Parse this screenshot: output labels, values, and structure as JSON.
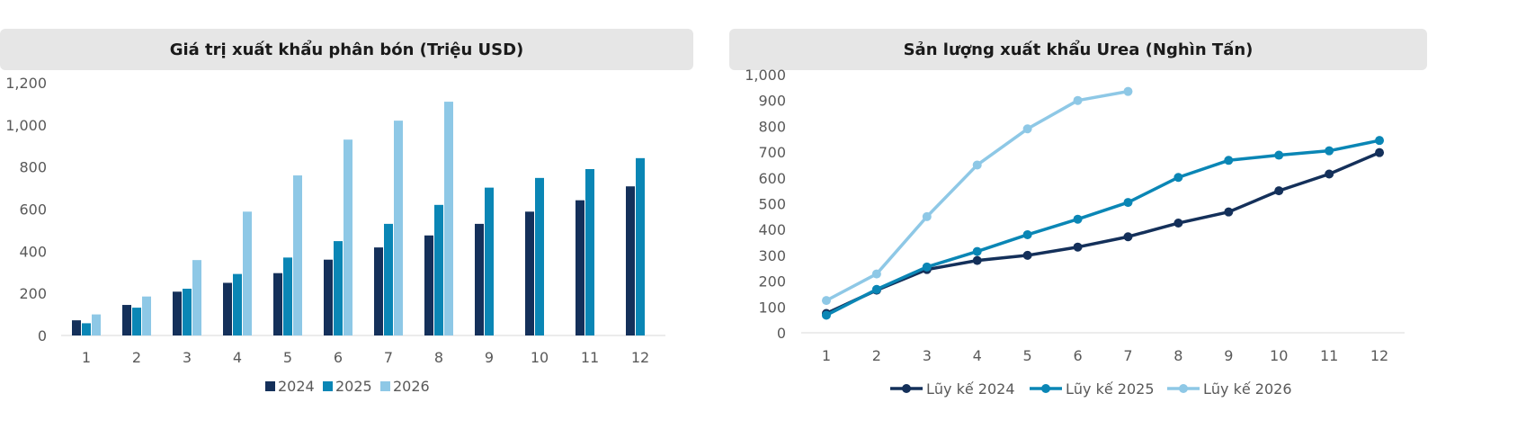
{
  "colors": {
    "s2024": "#14305a",
    "s2025": "#0a86b5",
    "s2026": "#8ec8e6",
    "axis": "#d9d9d9",
    "tick": "#595959"
  },
  "chart_data": [
    {
      "type": "bar",
      "title": "Giá trị xuất khẩu phân bón (Triệu USD)",
      "categories": [
        "1",
        "2",
        "3",
        "4",
        "5",
        "6",
        "7",
        "8",
        "9",
        "10",
        "11",
        "12"
      ],
      "ylim": [
        0,
        1200
      ],
      "yticks": [
        "0",
        "200",
        "400",
        "600",
        "800",
        "1,000",
        "1,200"
      ],
      "grid": false,
      "legend_position": "bottom",
      "series": [
        {
          "name": "2024",
          "color": "#14305a",
          "values": [
            72,
            145,
            208,
            250,
            296,
            360,
            418,
            475,
            530,
            588,
            642,
            708
          ]
        },
        {
          "name": "2025",
          "color": "#0a86b5",
          "values": [
            58,
            132,
            222,
            292,
            370,
            448,
            530,
            620,
            702,
            748,
            790,
            842
          ]
        },
        {
          "name": "2026",
          "color": "#8ec8e6",
          "values": [
            100,
            185,
            358,
            588,
            760,
            930,
            1020,
            1110,
            null,
            null,
            null,
            null
          ]
        }
      ]
    },
    {
      "type": "line",
      "title": "Sản lượng xuất khẩu Urea (Nghìn Tấn)",
      "categories": [
        "1",
        "2",
        "3",
        "4",
        "5",
        "6",
        "7",
        "8",
        "9",
        "10",
        "11",
        "12"
      ],
      "ylim": [
        0,
        1000
      ],
      "yticks": [
        "0",
        "100",
        "200",
        "300",
        "400",
        "500",
        "600",
        "700",
        "800",
        "900",
        "1,000"
      ],
      "grid": false,
      "legend_position": "bottom",
      "series": [
        {
          "name": "Lũy kế 2024",
          "color": "#14305a",
          "values": [
            75,
            165,
            245,
            280,
            300,
            332,
            372,
            425,
            468,
            550,
            615,
            698
          ]
        },
        {
          "name": "Lũy kế 2025",
          "color": "#0a86b5",
          "values": [
            68,
            168,
            255,
            315,
            380,
            440,
            505,
            602,
            668,
            688,
            705,
            745
          ]
        },
        {
          "name": "Lũy kế 2026",
          "color": "#8ec8e6",
          "values": [
            125,
            228,
            450,
            650,
            790,
            900,
            935,
            null,
            null,
            null,
            null,
            null
          ]
        }
      ]
    }
  ]
}
